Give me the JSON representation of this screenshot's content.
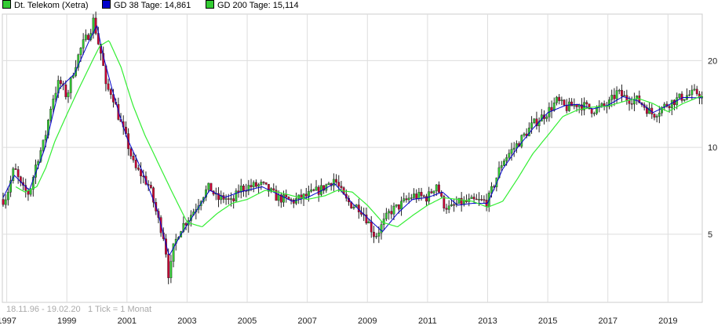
{
  "legend": [
    {
      "label": "Dt. Telekom (Xetra)",
      "color": "#33cc33"
    },
    {
      "label": "GD 38 Tage: 14,861",
      "color": "#0000cc"
    },
    {
      "label": "GD 200 Tage: 15,114",
      "color": "#33cc33"
    }
  ],
  "footer": {
    "range": "18.11.96 - 19.02.20",
    "tick_info": "1 Tick = 1 Monat"
  },
  "colors": {
    "up": "#33cc33",
    "down": "#cc0033",
    "gd38": "#0000cc",
    "gd200": "#33ee33",
    "grid": "#dddddd"
  },
  "chart_data": {
    "type": "line",
    "title": "",
    "xlabel": "",
    "ylabel": "",
    "yscale": "log",
    "ylim": [
      2.9,
      29
    ],
    "xlim": [
      1996.88,
      2020.14
    ],
    "y_ticks": [
      5,
      10,
      20
    ],
    "x_ticks": [
      "1997",
      "1999",
      "2001",
      "2003",
      "2005",
      "2007",
      "2009",
      "2011",
      "2013",
      "2015",
      "2017",
      "2019"
    ],
    "x_tick_values": [
      1997,
      1999,
      2001,
      2003,
      2005,
      2007,
      2009,
      2011,
      2013,
      2015,
      2017,
      2019
    ],
    "grid": true,
    "series": [
      {
        "name": "Dt. Telekom (Xetra)",
        "x": [
          1996.88,
          1997.0,
          1997.25,
          1997.5,
          1997.75,
          1998.0,
          1998.25,
          1998.5,
          1998.75,
          1999.0,
          1999.25,
          1999.5,
          1999.75,
          1999.9,
          2000.0,
          2000.1,
          2000.2,
          2000.3,
          2000.5,
          2000.75,
          2001.0,
          2001.25,
          2001.5,
          2001.75,
          2002.0,
          2002.25,
          2002.4,
          2002.55,
          2002.75,
          2003.0,
          2003.25,
          2003.5,
          2003.75,
          2004.0,
          2004.25,
          2004.5,
          2004.75,
          2005.0,
          2005.5,
          2006.0,
          2006.5,
          2007.0,
          2007.5,
          2007.9,
          2008.25,
          2008.5,
          2008.75,
          2009.0,
          2009.25,
          2009.5,
          2009.75,
          2010.0,
          2010.5,
          2011.0,
          2011.3,
          2011.5,
          2011.75,
          2012.0,
          2012.5,
          2013.0,
          2013.5,
          2014.0,
          2014.5,
          2015.0,
          2015.3,
          2015.6,
          2016.0,
          2016.5,
          2017.0,
          2017.3,
          2017.6,
          2018.0,
          2018.5,
          2019.0,
          2019.5,
          2020.0,
          2020.14
        ],
        "y": [
          6.6,
          6.8,
          8.5,
          7.2,
          6.9,
          9.0,
          10.5,
          14.5,
          17.0,
          15.0,
          19.0,
          22.5,
          25.0,
          28.0,
          24.0,
          22.0,
          19.5,
          16.0,
          15.5,
          12.5,
          10.5,
          8.5,
          8.0,
          7.3,
          5.8,
          4.8,
          3.5,
          4.5,
          5.2,
          5.6,
          6.1,
          6.8,
          7.3,
          6.6,
          6.7,
          6.4,
          7.2,
          7.3,
          7.4,
          6.7,
          6.5,
          6.8,
          7.2,
          7.8,
          6.6,
          6.3,
          6.2,
          5.6,
          4.9,
          5.4,
          6.0,
          6.2,
          6.8,
          6.7,
          7.5,
          6.4,
          6.1,
          6.4,
          6.5,
          6.5,
          9.0,
          10.3,
          12.0,
          13.3,
          14.5,
          13.7,
          14.2,
          13.5,
          14.0,
          15.5,
          14.8,
          14.6,
          13.0,
          14.2,
          15.0,
          15.5,
          14.8
        ]
      },
      {
        "name": "GD 38 Tage: 14,861",
        "x": [
          1996.88,
          1997.25,
          1997.75,
          1998.25,
          1998.75,
          1999.25,
          1999.75,
          2000.0,
          2000.2,
          2000.5,
          2000.75,
          2001.0,
          2001.5,
          2002.0,
          2002.4,
          2002.75,
          2003.25,
          2003.75,
          2004.25,
          2004.75,
          2005.5,
          2006.0,
          2006.5,
          2007.0,
          2007.5,
          2007.9,
          2008.5,
          2009.0,
          2009.5,
          2010.0,
          2010.5,
          2011.0,
          2011.5,
          2012.0,
          2012.5,
          2013.0,
          2013.5,
          2014.0,
          2014.5,
          2015.0,
          2015.6,
          2016.0,
          2016.5,
          2017.0,
          2017.5,
          2018.0,
          2018.5,
          2019.0,
          2019.5,
          2020.14
        ],
        "y": [
          6.7,
          8.0,
          7.1,
          9.8,
          16.0,
          18.0,
          23.5,
          26.5,
          21.0,
          16.0,
          13.0,
          10.8,
          8.3,
          6.1,
          4.2,
          4.9,
          5.9,
          7.1,
          6.7,
          7.0,
          7.3,
          6.9,
          6.5,
          6.7,
          7.1,
          7.5,
          6.4,
          5.7,
          5.1,
          5.9,
          6.6,
          6.7,
          7.0,
          6.3,
          6.4,
          6.4,
          8.4,
          10.0,
          11.6,
          13.2,
          14.0,
          14.1,
          13.6,
          14.0,
          15.0,
          14.5,
          13.2,
          14.0,
          14.9,
          14.86
        ]
      },
      {
        "name": "GD 200 Tage: 15,114",
        "x": [
          1997.3,
          1997.6,
          1998.0,
          1998.3,
          1998.6,
          1999.0,
          1999.4,
          1999.8,
          2000.1,
          2000.4,
          2000.8,
          2001.2,
          2001.6,
          2002.0,
          2002.5,
          2003.0,
          2003.5,
          2004.0,
          2004.5,
          2005.0,
          2005.6,
          2006.0,
          2006.5,
          2007.0,
          2007.6,
          2008.0,
          2008.5,
          2009.0,
          2009.5,
          2010.0,
          2010.5,
          2011.0,
          2011.5,
          2012.0,
          2012.5,
          2013.0,
          2013.5,
          2014.0,
          2014.5,
          2015.0,
          2015.5,
          2016.0,
          2016.5,
          2017.0,
          2017.6,
          2018.0,
          2018.5,
          2019.0,
          2019.5,
          2020.14
        ],
        "y": [
          7.3,
          7.0,
          7.3,
          8.5,
          10.5,
          13.0,
          16.0,
          19.5,
          22.5,
          23.5,
          19.0,
          14.0,
          11.0,
          9.0,
          7.0,
          5.5,
          5.3,
          5.9,
          6.4,
          6.6,
          7.1,
          7.0,
          6.8,
          6.6,
          6.8,
          7.1,
          7.0,
          6.3,
          5.5,
          5.3,
          5.8,
          6.3,
          6.7,
          6.6,
          6.5,
          6.2,
          6.5,
          7.8,
          9.5,
          11.0,
          12.8,
          13.5,
          13.8,
          13.9,
          14.5,
          14.8,
          14.2,
          13.3,
          14.2,
          15.11
        ]
      }
    ]
  }
}
